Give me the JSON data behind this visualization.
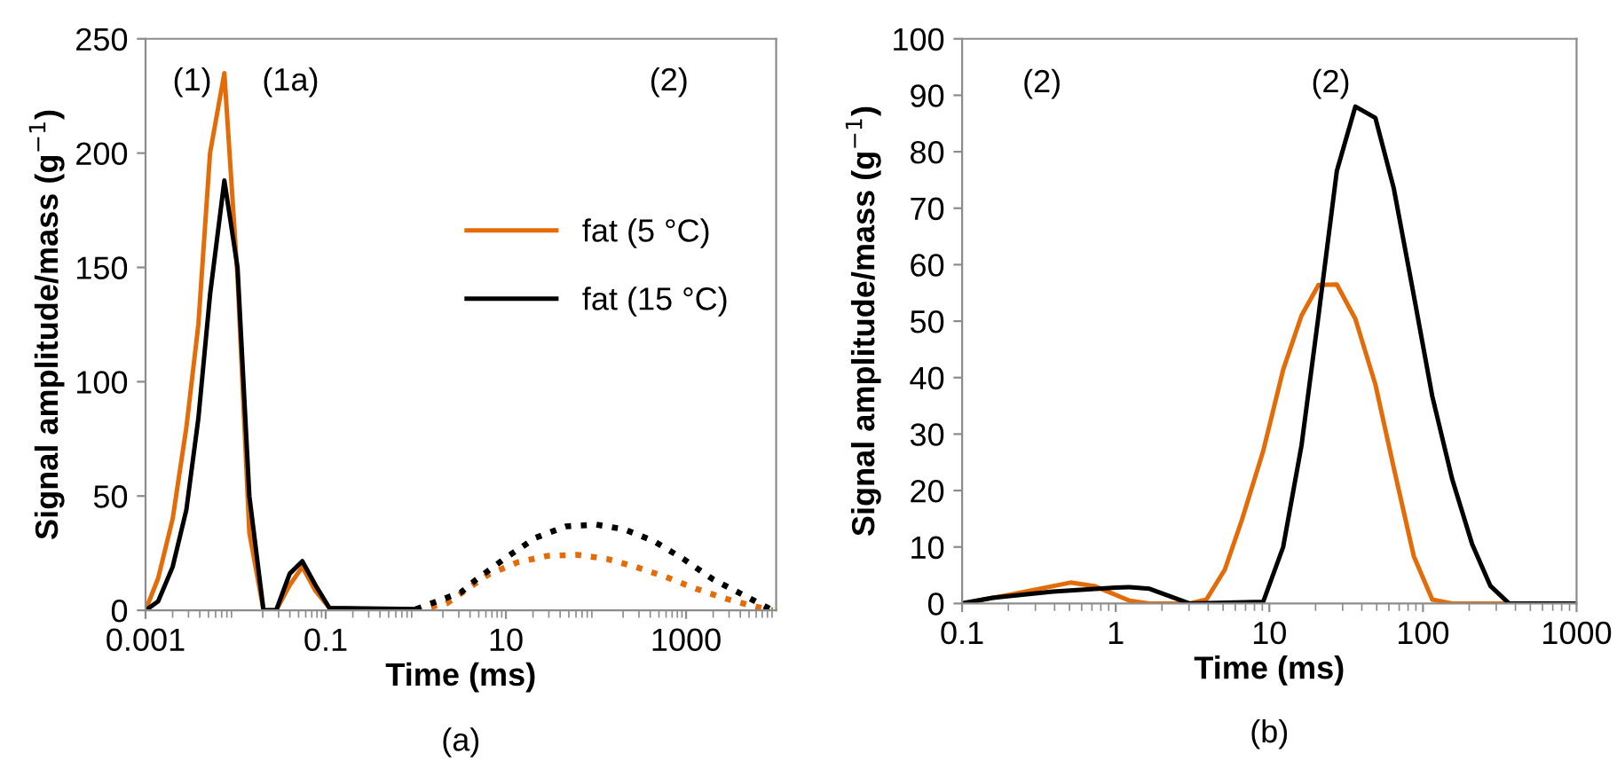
{
  "chart_data": [
    {
      "type": "line",
      "xlabel": "Time (ms)",
      "ylabel": "Signal amplitude/mass (g$^{−1}$)",
      "log": "x",
      "xlim": [
        0.001,
        10000
      ],
      "xticks": [
        0.001,
        0.1,
        10,
        1000
      ],
      "ylim": [
        0,
        250
      ],
      "yticks": [
        0,
        50,
        100,
        150,
        200,
        250
      ],
      "grid": false,
      "legend": "center right",
      "marker": "none",
      "series": [
        {
          "name": "fat (5 °C)",
          "color": "#e36c09",
          "line_style": "solid",
          "x": [
            0.001,
            0.00138,
            0.002,
            0.00284,
            0.00386,
            0.0052,
            0.0075,
            0.0105,
            0.0142,
            0.0204,
            0.0282,
            0.0398,
            0.055,
            0.077,
            0.11,
            1
          ],
          "values": [
            0,
            14,
            40,
            80,
            125,
            200,
            235,
            146,
            34,
            0,
            0,
            11,
            19,
            8.5,
            1,
            0
          ]
        },
        {
          "name": "fat (15 °C)",
          "color": "#000000",
          "line_style": "solid",
          "x": [
            0.001,
            0.00138,
            0.002,
            0.00284,
            0.00386,
            0.0052,
            0.0075,
            0.0105,
            0.0142,
            0.0204,
            0.0282,
            0.0398,
            0.055,
            0.077,
            0.11,
            1
          ],
          "values": [
            0,
            3.9,
            19,
            44,
            84,
            138,
            188,
            150,
            50,
            0,
            0,
            16,
            21.5,
            11,
            1,
            0.5
          ]
        },
        {
          "color": "#e36c09",
          "line_style": "dotted",
          "x": [
            1,
            2.19,
            6.3,
            13.5,
            28.8,
            61.7,
            132,
            275,
            589,
            1260,
            2690,
            5620,
            9120
          ],
          "values": [
            0,
            3,
            15.5,
            21,
            23.8,
            24.3,
            22.5,
            19,
            14.7,
            9.6,
            5.2,
            1.8,
            0
          ]
        },
        {
          "color": "#000000",
          "line_style": "dotted",
          "x": [
            1,
            3.16,
            4.7,
            10,
            21,
            46,
            100,
            204,
            437,
            933,
            2000,
            4170,
            9120
          ],
          "values": [
            0.5,
            7.8,
            13.5,
            23,
            31.6,
            36.7,
            37.5,
            35.5,
            30.3,
            22.5,
            13.5,
            7,
            0
          ]
        }
      ],
      "annotations": [
        "(1)",
        "(1a)",
        "(2)",
        "(a)"
      ]
    },
    {
      "type": "line",
      "xlabel": "Time (ms)",
      "ylabel": "Signal amplitude/mass (g$^{−1}$)",
      "log": "x",
      "xlim": [
        0.1,
        1000
      ],
      "xticks": [
        0.1,
        1,
        10,
        100,
        1000
      ],
      "ylim": [
        0,
        100
      ],
      "yticks": [
        0,
        10,
        20,
        30,
        40,
        50,
        60,
        70,
        80,
        90,
        100
      ],
      "grid": false,
      "legend": false,
      "marker": "none",
      "series": [
        {
          "color": "#e36c09",
          "line_style": "solid",
          "x": [
            0.1,
            0.209,
            0.507,
            0.724,
            1.23,
            1.66,
            3.02,
            3.89,
            5.13,
            6.61,
            9.12,
            12.3,
            16.2,
            20.9,
            27.5,
            36.3,
            49,
            64.6,
            87.1,
            115,
            155,
            1000
          ],
          "values": [
            0,
            1.6,
            3.7,
            3.1,
            0.5,
            0,
            0,
            0.7,
            6,
            14.7,
            27,
            41.4,
            51,
            56.4,
            56.5,
            50.4,
            38.8,
            24,
            8.4,
            0.7,
            0,
            0
          ]
        },
        {
          "color": "#000000",
          "line_style": "solid",
          "x": [
            0.1,
            0.158,
            0.389,
            1,
            1.23,
            1.66,
            3.02,
            9.12,
            12.3,
            16.2,
            20.9,
            27.5,
            36.3,
            49,
            64.6,
            87.1,
            115,
            155,
            209,
            275,
            363,
            1000
          ],
          "values": [
            0,
            1,
            2.1,
            2.8,
            2.9,
            2.6,
            0,
            0.3,
            10,
            28,
            51,
            76.6,
            88,
            86,
            73.5,
            54.6,
            36.7,
            22,
            10.5,
            3.1,
            0,
            0
          ]
        }
      ],
      "annotations": [
        "(2)",
        "(2)",
        "(b)"
      ]
    }
  ]
}
